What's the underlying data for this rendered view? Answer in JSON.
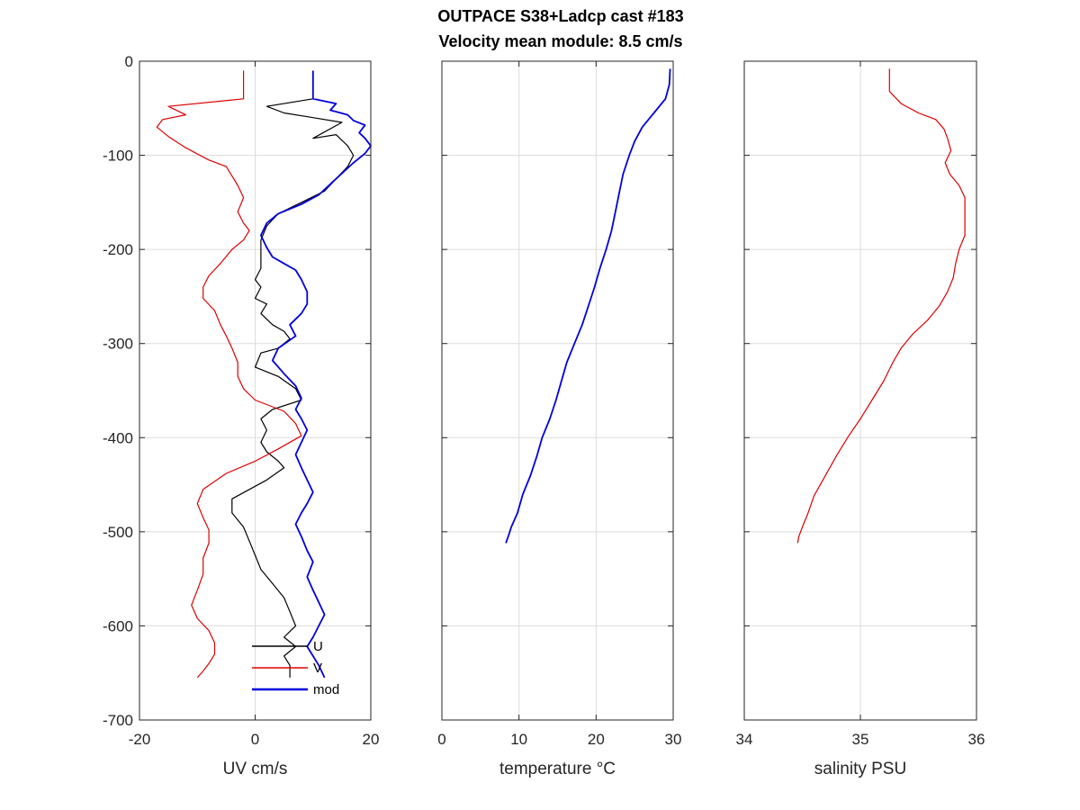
{
  "title_line1": "OUTPACE S38+Ladcp cast #183",
  "title_line2": "Velocity mean module:  8.5 cm/s",
  "chart_data": [
    {
      "type": "line",
      "xlabel": "UV cm/s",
      "ylabel": "",
      "xlim": [
        -20,
        20
      ],
      "ylim": [
        -700,
        0
      ],
      "xticks": [
        "-20",
        "0",
        "20"
      ],
      "yticks": [
        "0",
        "-100",
        "-200",
        "-300",
        "-400",
        "-500",
        "-600",
        "-700"
      ],
      "grid": true,
      "legend": {
        "placement": "bottom-right",
        "entries": [
          "U",
          "V",
          "mod"
        ]
      },
      "series": [
        {
          "name": "U",
          "color": "#000000",
          "points": [
            [
              10,
              -10
            ],
            [
              10,
              -40
            ],
            [
              2,
              -48
            ],
            [
              5,
              -55
            ],
            [
              10,
              -60
            ],
            [
              15,
              -65
            ],
            [
              10,
              -82
            ],
            [
              14,
              -78
            ],
            [
              16,
              -90
            ],
            [
              17,
              -100
            ],
            [
              16,
              -112
            ],
            [
              14,
              -125
            ],
            [
              12,
              -138
            ],
            [
              8,
              -150
            ],
            [
              4,
              -162
            ],
            [
              2,
              -175
            ],
            [
              1,
              -190
            ],
            [
              1,
              -205
            ],
            [
              1,
              -220
            ],
            [
              0,
              -232
            ],
            [
              1,
              -240
            ],
            [
              0,
              -252
            ],
            [
              2,
              -258
            ],
            [
              1,
              -268
            ],
            [
              3,
              -280
            ],
            [
              5,
              -287
            ],
            [
              6,
              -295
            ],
            [
              4,
              -305
            ],
            [
              1,
              -310
            ],
            [
              0,
              -325
            ],
            [
              4,
              -335
            ],
            [
              7,
              -348
            ],
            [
              8,
              -360
            ],
            [
              3,
              -370
            ],
            [
              1,
              -380
            ],
            [
              2,
              -392
            ],
            [
              1,
              -405
            ],
            [
              2,
              -415
            ],
            [
              4,
              -425
            ],
            [
              5,
              -432
            ],
            [
              2,
              -445
            ],
            [
              -1,
              -455
            ],
            [
              -4,
              -465
            ],
            [
              -4,
              -480
            ],
            [
              -2,
              -495
            ],
            [
              -1,
              -510
            ],
            [
              0,
              -525
            ],
            [
              1,
              -540
            ],
            [
              3,
              -555
            ],
            [
              5,
              -570
            ],
            [
              6,
              -585
            ],
            [
              7,
              -600
            ],
            [
              5,
              -612
            ],
            [
              7,
              -622
            ],
            [
              5,
              -632
            ],
            [
              6,
              -642
            ],
            [
              6,
              -655
            ]
          ]
        },
        {
          "name": "V",
          "color": "#dd0000",
          "points": [
            [
              -2,
              -10
            ],
            [
              -2,
              -40
            ],
            [
              -15,
              -48
            ],
            [
              -12,
              -57
            ],
            [
              -16,
              -62
            ],
            [
              -17,
              -70
            ],
            [
              -15,
              -80
            ],
            [
              -12,
              -92
            ],
            [
              -8,
              -105
            ],
            [
              -5,
              -112
            ],
            [
              -4,
              -122
            ],
            [
              -3,
              -132
            ],
            [
              -2,
              -145
            ],
            [
              -3,
              -160
            ],
            [
              -2,
              -172
            ],
            [
              -1,
              -180
            ],
            [
              -2,
              -190
            ],
            [
              -4,
              -200
            ],
            [
              -6,
              -215
            ],
            [
              -8,
              -228
            ],
            [
              -9,
              -240
            ],
            [
              -9,
              -252
            ],
            [
              -7,
              -265
            ],
            [
              -6,
              -280
            ],
            [
              -5,
              -292
            ],
            [
              -4,
              -305
            ],
            [
              -3,
              -320
            ],
            [
              -3,
              -335
            ],
            [
              -2,
              -348
            ],
            [
              0,
              -360
            ],
            [
              5,
              -372
            ],
            [
              7,
              -385
            ],
            [
              8,
              -398
            ],
            [
              4,
              -412
            ],
            [
              0,
              -425
            ],
            [
              -5,
              -438
            ],
            [
              -9,
              -455
            ],
            [
              -10,
              -470
            ],
            [
              -9,
              -485
            ],
            [
              -8,
              -498
            ],
            [
              -8,
              -512
            ],
            [
              -9,
              -528
            ],
            [
              -9,
              -545
            ],
            [
              -10,
              -562
            ],
            [
              -11,
              -578
            ],
            [
              -10,
              -592
            ],
            [
              -8,
              -605
            ],
            [
              -7,
              -618
            ],
            [
              -7,
              -630
            ],
            [
              -8,
              -640
            ],
            [
              -9,
              -648
            ],
            [
              -10,
              -655
            ]
          ]
        },
        {
          "name": "mod",
          "color": "#0000dd",
          "points": [
            [
              10,
              -10
            ],
            [
              10,
              -40
            ],
            [
              14,
              -45
            ],
            [
              13,
              -52
            ],
            [
              16,
              -57
            ],
            [
              17,
              -63
            ],
            [
              19,
              -68
            ],
            [
              18,
              -76
            ],
            [
              19,
              -82
            ],
            [
              20,
              -90
            ],
            [
              19,
              -98
            ],
            [
              17,
              -108
            ],
            [
              14,
              -125
            ],
            [
              11,
              -142
            ],
            [
              8,
              -152
            ],
            [
              4,
              -162
            ],
            [
              2,
              -172
            ],
            [
              1,
              -185
            ],
            [
              2,
              -198
            ],
            [
              3,
              -208
            ],
            [
              5,
              -215
            ],
            [
              7,
              -222
            ],
            [
              8,
              -232
            ],
            [
              9,
              -245
            ],
            [
              9,
              -258
            ],
            [
              8,
              -268
            ],
            [
              6,
              -280
            ],
            [
              7,
              -292
            ],
            [
              4,
              -305
            ],
            [
              3,
              -318
            ],
            [
              5,
              -332
            ],
            [
              7,
              -345
            ],
            [
              8,
              -358
            ],
            [
              7,
              -370
            ],
            [
              8,
              -380
            ],
            [
              9,
              -392
            ],
            [
              8,
              -405
            ],
            [
              7,
              -418
            ],
            [
              8,
              -432
            ],
            [
              9,
              -445
            ],
            [
              10,
              -458
            ],
            [
              9,
              -470
            ],
            [
              8,
              -480
            ],
            [
              7,
              -492
            ],
            [
              8,
              -505
            ],
            [
              9,
              -520
            ],
            [
              10,
              -532
            ],
            [
              9,
              -548
            ],
            [
              10,
              -562
            ],
            [
              11,
              -575
            ],
            [
              12,
              -588
            ],
            [
              11,
              -600
            ],
            [
              10,
              -612
            ],
            [
              9,
              -622
            ],
            [
              10,
              -632
            ],
            [
              11,
              -642
            ],
            [
              12,
              -655
            ]
          ]
        }
      ]
    },
    {
      "type": "line",
      "xlabel": "temperature °C",
      "ylabel": "",
      "xlim": [
        0,
        30
      ],
      "ylim": [
        -700,
        0
      ],
      "xticks": [
        "0",
        "10",
        "20",
        "30"
      ],
      "grid": true,
      "series": [
        {
          "name": "",
          "color": "#0000dd",
          "points": [
            [
              29.6,
              -8
            ],
            [
              29.5,
              -25
            ],
            [
              29.0,
              -40
            ],
            [
              27.5,
              -55
            ],
            [
              26.0,
              -70
            ],
            [
              25.0,
              -85
            ],
            [
              24.3,
              -100
            ],
            [
              23.5,
              -120
            ],
            [
              23.0,
              -140
            ],
            [
              22.5,
              -160
            ],
            [
              22.0,
              -180
            ],
            [
              21.3,
              -200
            ],
            [
              20.5,
              -220
            ],
            [
              19.8,
              -240
            ],
            [
              19.0,
              -260
            ],
            [
              18.2,
              -280
            ],
            [
              17.2,
              -300
            ],
            [
              16.2,
              -320
            ],
            [
              15.5,
              -340
            ],
            [
              14.8,
              -360
            ],
            [
              14.0,
              -380
            ],
            [
              13.0,
              -400
            ],
            [
              12.3,
              -420
            ],
            [
              11.5,
              -440
            ],
            [
              10.5,
              -460
            ],
            [
              9.8,
              -480
            ],
            [
              9.0,
              -495
            ],
            [
              8.6,
              -505
            ],
            [
              8.3,
              -512
            ]
          ]
        }
      ]
    },
    {
      "type": "line",
      "xlabel": "salinity PSU",
      "ylabel": "",
      "xlim": [
        34,
        36
      ],
      "ylim": [
        -700,
        0
      ],
      "xticks": [
        "34",
        "35",
        "36"
      ],
      "grid": true,
      "series": [
        {
          "name": "",
          "color": "#dd0000",
          "points": [
            [
              35.25,
              -8
            ],
            [
              35.25,
              -32
            ],
            [
              35.35,
              -45
            ],
            [
              35.5,
              -55
            ],
            [
              35.65,
              -62
            ],
            [
              35.72,
              -72
            ],
            [
              35.75,
              -82
            ],
            [
              35.78,
              -95
            ],
            [
              35.73,
              -108
            ],
            [
              35.77,
              -120
            ],
            [
              35.85,
              -132
            ],
            [
              35.9,
              -145
            ],
            [
              35.9,
              -165
            ],
            [
              35.9,
              -185
            ],
            [
              35.85,
              -200
            ],
            [
              35.82,
              -215
            ],
            [
              35.8,
              -230
            ],
            [
              35.75,
              -245
            ],
            [
              35.68,
              -260
            ],
            [
              35.58,
              -275
            ],
            [
              35.45,
              -290
            ],
            [
              35.35,
              -305
            ],
            [
              35.28,
              -320
            ],
            [
              35.2,
              -340
            ],
            [
              35.1,
              -360
            ],
            [
              35.0,
              -380
            ],
            [
              34.9,
              -398
            ],
            [
              34.8,
              -418
            ],
            [
              34.7,
              -440
            ],
            [
              34.6,
              -462
            ],
            [
              34.55,
              -480
            ],
            [
              34.5,
              -495
            ],
            [
              34.47,
              -505
            ],
            [
              34.46,
              -512
            ]
          ]
        }
      ]
    }
  ]
}
